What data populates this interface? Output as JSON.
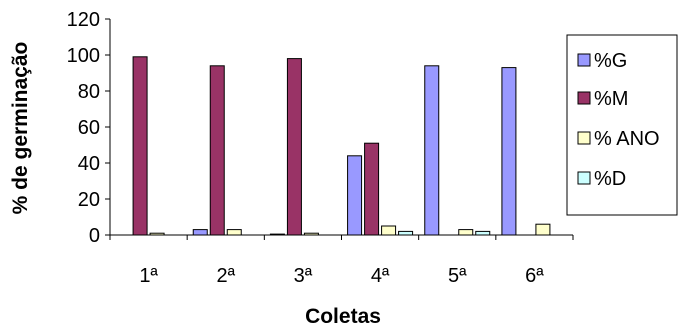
{
  "chart_data": {
    "type": "bar",
    "xlabel": "Coletas",
    "ylabel": "% de germinação",
    "ylim": [
      0,
      120
    ],
    "yticks": [
      "0",
      "20",
      "40",
      "60",
      "80",
      "100",
      "120"
    ],
    "categories": [
      "1ª",
      "2ª",
      "3ª",
      "4ª",
      "5ª",
      "6ª"
    ],
    "series": [
      {
        "name": "%G",
        "color": "#9999ff",
        "values": [
          0,
          3,
          0.5,
          44,
          94,
          93
        ]
      },
      {
        "name": "%M",
        "color": "#993366",
        "values": [
          99,
          94,
          98,
          51,
          0,
          0
        ]
      },
      {
        "name": "% ANO",
        "color": "#ffffcc",
        "values": [
          1,
          3,
          1,
          5,
          3,
          6
        ]
      },
      {
        "name": "%D",
        "color": "#ccffff",
        "values": [
          0,
          0,
          0,
          2,
          2,
          0
        ]
      }
    ],
    "legend_position": "right",
    "grid": false
  }
}
